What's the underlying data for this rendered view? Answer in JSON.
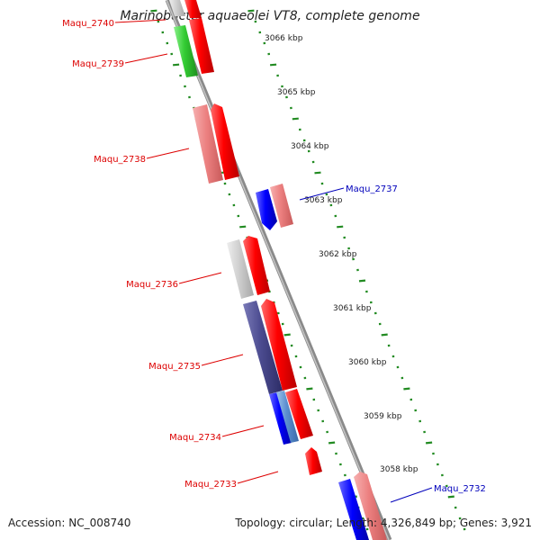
{
  "title": "Marinobacter aquaeolei VT8, complete genome",
  "footer": {
    "accession": "Accession: NC_008740",
    "topology": "Topology: circular; Length: 4,326,849 bp; Genes: 3,921"
  },
  "scale_labels": [
    "3066 kbp",
    "3065 kbp",
    "3064 kbp",
    "3063 kbp",
    "3062 kbp",
    "3061 kbp",
    "3060 kbp",
    "3059 kbp",
    "3058 kbp"
  ],
  "gene_labels": [
    {
      "name": "Maqu_2740",
      "strand_color": "#dd0000"
    },
    {
      "name": "Maqu_2739",
      "strand_color": "#dd0000"
    },
    {
      "name": "Maqu_2738",
      "strand_color": "#dd0000"
    },
    {
      "name": "Maqu_2737",
      "strand_color": "#0000bb"
    },
    {
      "name": "Maqu_2736",
      "strand_color": "#dd0000"
    },
    {
      "name": "Maqu_2735",
      "strand_color": "#dd0000"
    },
    {
      "name": "Maqu_2734",
      "strand_color": "#dd0000"
    },
    {
      "name": "Maqu_2733",
      "strand_color": "#dd0000"
    },
    {
      "name": "Maqu_2732",
      "strand_color": "#0000bb"
    }
  ],
  "colors": {
    "forward": "#ff0000",
    "reverse": "#0000ff",
    "backbone": "#888888",
    "scale_ticks": "#228b22"
  }
}
